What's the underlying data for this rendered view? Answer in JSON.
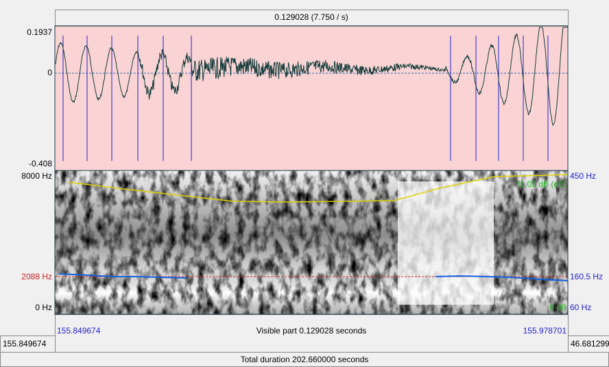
{
  "header": {
    "selection_duration": "0.129028 (7.750 / s)"
  },
  "waveform": {
    "y_max": "0.1937",
    "y_zero": "0",
    "y_min": "-0.408"
  },
  "spectrogram": {
    "freq_max": "8000 Hz",
    "freq_cursor": "2088 Hz",
    "freq_min": "0 Hz",
    "intensity_label": "71.02 dB (dE)",
    "intensity_min": "0 dB",
    "pitch_max": "450 Hz",
    "pitch_cursor": "160.5 Hz",
    "pitch_min": "60 Hz"
  },
  "footer": {
    "visible_start": "155.849674",
    "visible_label": "Visible part 0.129028 seconds",
    "visible_end": "155.978701",
    "window_start": "155.849674",
    "window_end": "46.681299",
    "total": "Total duration 202.660000 seconds"
  }
}
